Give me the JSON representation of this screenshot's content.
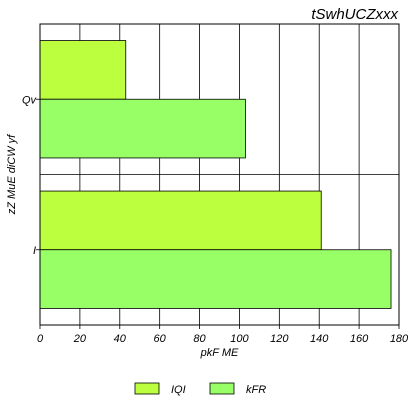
{
  "chart_data": {
    "type": "bar",
    "orientation": "horizontal",
    "title": "tSwhUCZxxx",
    "xlabel": "pkF ME",
    "ylabel": "zZ MuE diCW yf",
    "categories": [
      "Qv",
      "I"
    ],
    "series": [
      {
        "name": "IQI",
        "values": [
          43,
          141
        ],
        "color": "#bbff3f"
      },
      {
        "name": "kFR",
        "values": [
          103,
          176
        ],
        "color": "#99ff66"
      }
    ],
    "xlim": [
      0,
      180
    ],
    "xticks": [
      0,
      20,
      40,
      60,
      80,
      100,
      120,
      140,
      160,
      180
    ],
    "grid": true,
    "legend_position": "bottom"
  }
}
